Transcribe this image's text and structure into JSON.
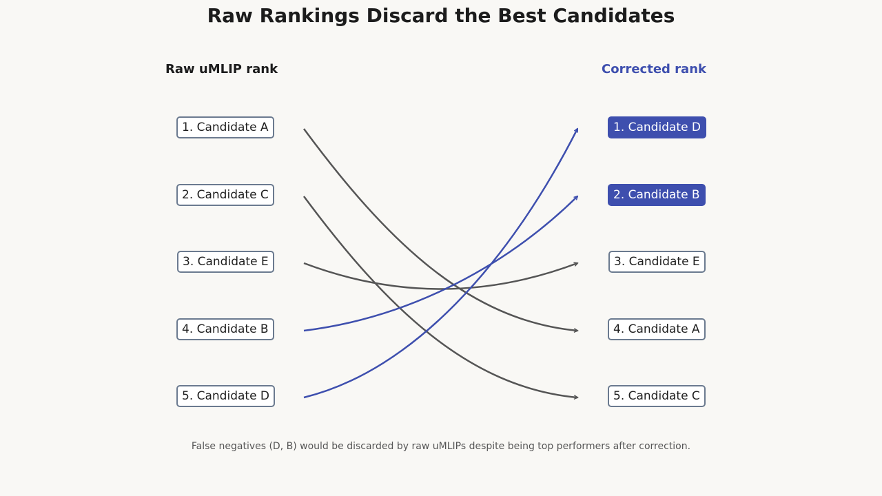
{
  "title": "Raw Rankings Discard the Best Candidates",
  "left_header": "Raw uMLIP rank",
  "right_header": "Corrected rank",
  "left_items": [
    {
      "label": "1. Candidate A"
    },
    {
      "label": "2. Candidate C"
    },
    {
      "label": "3. Candidate E"
    },
    {
      "label": "4. Candidate B"
    },
    {
      "label": "5. Candidate D"
    }
  ],
  "right_items": [
    {
      "label": "1. Candidate D",
      "highlighted": true
    },
    {
      "label": "2. Candidate B",
      "highlighted": true
    },
    {
      "label": "3. Candidate E",
      "highlighted": false
    },
    {
      "label": "4. Candidate A",
      "highlighted": false
    },
    {
      "label": "5. Candidate C",
      "highlighted": false
    }
  ],
  "links": [
    {
      "from_rank": 1,
      "to_rank": 4,
      "highlighted": false
    },
    {
      "from_rank": 2,
      "to_rank": 5,
      "highlighted": false
    },
    {
      "from_rank": 3,
      "to_rank": 3,
      "highlighted": false
    },
    {
      "from_rank": 4,
      "to_rank": 2,
      "highlighted": true
    },
    {
      "from_rank": 5,
      "to_rank": 1,
      "highlighted": true
    }
  ],
  "colors": {
    "highlight": "#3e4fae",
    "neutral_link": "#555555",
    "box_border": "#6b7a8f",
    "background": "#f9f8f5"
  },
  "caption": "False negatives (D, B) would be discarded by raw uMLIPs despite being top performers after correction."
}
